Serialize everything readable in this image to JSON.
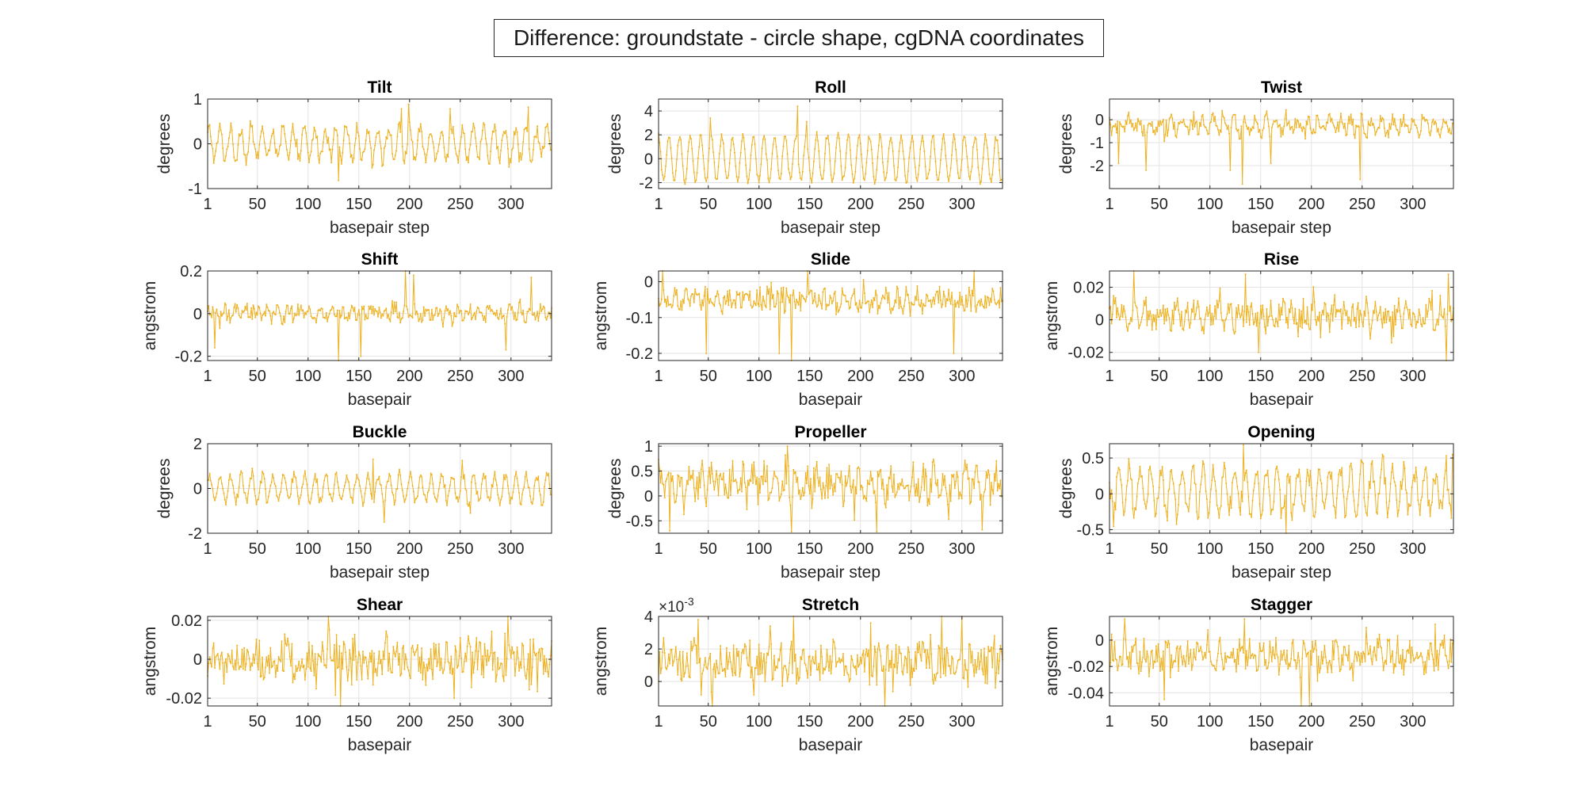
{
  "figure": {
    "title": "Difference: groundstate - circle shape, cgDNA coordinates",
    "line_color": "#EDB120"
  },
  "chart_data": [
    {
      "type": "line",
      "title": "Tilt",
      "xlabel": "basepair step",
      "ylabel": "degrees",
      "xlim": [
        1,
        340
      ],
      "ylim": [
        -1,
        1
      ],
      "xticks": [
        1,
        50,
        100,
        150,
        200,
        250,
        300
      ],
      "yticks": [
        -1,
        0,
        1
      ],
      "ytick_labels": [
        "-1",
        "0",
        "1"
      ],
      "n_points": 339,
      "x_start": 1,
      "series": [
        {
          "values_summary": "oscillating about 0, typical amplitude ±0.35",
          "amplitude": 0.35,
          "period": 10.4,
          "noise": 0.14,
          "offset": 0.0,
          "spikes": [
            {
              "x": 199,
              "y": 0.88
            },
            {
              "x": 192,
              "y": 0.78
            },
            {
              "x": 317,
              "y": 0.82
            },
            {
              "x": 240,
              "y": 0.78
            },
            {
              "x": 130,
              "y": -0.82
            }
          ]
        }
      ]
    },
    {
      "type": "line",
      "title": "Roll",
      "xlabel": "basepair step",
      "ylabel": "degrees",
      "xlim": [
        1,
        340
      ],
      "ylim": [
        -2.5,
        5
      ],
      "xticks": [
        1,
        50,
        100,
        150,
        200,
        250,
        300
      ],
      "yticks": [
        -2,
        0,
        2,
        4
      ],
      "ytick_labels": [
        "-2",
        "0",
        "2",
        "4"
      ],
      "n_points": 339,
      "x_start": 1,
      "series": [
        {
          "values_summary": "regular oscillation between about -2 and 2",
          "amplitude": 1.9,
          "period": 10.4,
          "noise": 0.25,
          "offset": 0.0,
          "spikes": [
            {
              "x": 138,
              "y": 4.4
            },
            {
              "x": 147,
              "y": 3.1
            },
            {
              "x": 52,
              "y": 3.4
            }
          ]
        }
      ]
    },
    {
      "type": "line",
      "title": "Twist",
      "xlabel": "basepair step",
      "ylabel": "degrees",
      "xlim": [
        1,
        340
      ],
      "ylim": [
        -3,
        0.9
      ],
      "xticks": [
        1,
        50,
        100,
        150,
        200,
        250,
        300
      ],
      "yticks": [
        -2,
        -1,
        0
      ],
      "ytick_labels": [
        "-2",
        "-1",
        "0"
      ],
      "n_points": 339,
      "x_start": 1,
      "series": [
        {
          "values_summary": "mostly between -0.8 and 0.3 with downward spikes",
          "amplitude": 0.3,
          "period": 10.4,
          "noise": 0.3,
          "offset": -0.25,
          "spikes": [
            {
              "x": 132,
              "y": -2.8
            },
            {
              "x": 120,
              "y": -2.2
            },
            {
              "x": 248,
              "y": -2.6
            },
            {
              "x": 10,
              "y": -1.9
            },
            {
              "x": 160,
              "y": -1.9
            },
            {
              "x": 37,
              "y": -2.2
            }
          ]
        }
      ]
    },
    {
      "type": "line",
      "title": "Shift",
      "xlabel": "basepair",
      "ylabel": "angstrom",
      "xlim": [
        1,
        340
      ],
      "ylim": [
        -0.22,
        0.2
      ],
      "xticks": [
        1,
        50,
        100,
        150,
        200,
        250,
        300
      ],
      "yticks": [
        -0.2,
        0,
        0.2
      ],
      "ytick_labels": [
        "-0.2",
        "0",
        "0.2"
      ],
      "n_points": 340,
      "x_start": 1,
      "series": [
        {
          "values_summary": "noise about 0, amplitude ±0.04",
          "amplitude": 0.02,
          "period": 10.4,
          "noise": 0.03,
          "offset": 0.0,
          "spikes": [
            {
              "x": 196,
              "y": 0.2
            },
            {
              "x": 204,
              "y": 0.18
            },
            {
              "x": 130,
              "y": -0.22
            },
            {
              "x": 152,
              "y": -0.2
            },
            {
              "x": 8,
              "y": -0.16
            },
            {
              "x": 320,
              "y": 0.17
            },
            {
              "x": 295,
              "y": -0.17
            }
          ]
        }
      ]
    },
    {
      "type": "line",
      "title": "Slide",
      "xlabel": "basepair",
      "ylabel": "angstrom",
      "xlim": [
        1,
        340
      ],
      "ylim": [
        -0.22,
        0.03
      ],
      "xticks": [
        1,
        50,
        100,
        150,
        200,
        250,
        300
      ],
      "yticks": [
        -0.2,
        -0.1,
        0
      ],
      "ytick_labels": [
        "-0.2",
        "-0.1",
        "0"
      ],
      "n_points": 340,
      "x_start": 1,
      "series": [
        {
          "values_summary": "mostly between -0.1 and 0 with downward spikes",
          "amplitude": 0.015,
          "period": 10.4,
          "noise": 0.025,
          "offset": -0.05,
          "spikes": [
            {
              "x": 132,
              "y": -0.22
            },
            {
              "x": 120,
              "y": -0.2
            },
            {
              "x": 48,
              "y": -0.2
            },
            {
              "x": 292,
              "y": -0.2
            },
            {
              "x": 5,
              "y": 0.03
            },
            {
              "x": 148,
              "y": 0.03
            },
            {
              "x": 312,
              "y": 0.03
            }
          ]
        }
      ]
    },
    {
      "type": "line",
      "title": "Rise",
      "xlabel": "basepair",
      "ylabel": "angstrom",
      "xlim": [
        1,
        340
      ],
      "ylim": [
        -0.025,
        0.03
      ],
      "xticks": [
        1,
        50,
        100,
        150,
        200,
        250,
        300
      ],
      "yticks": [
        -0.02,
        0,
        0.02
      ],
      "ytick_labels": [
        "-0.02",
        "0",
        "0.02"
      ],
      "n_points": 340,
      "x_start": 1,
      "series": [
        {
          "values_summary": "noise about 0.003, amplitude ±0.012",
          "amplitude": 0.004,
          "period": 10.4,
          "noise": 0.008,
          "offset": 0.003,
          "spikes": [
            {
              "x": 25,
              "y": 0.03
            },
            {
              "x": 135,
              "y": 0.028
            },
            {
              "x": 335,
              "y": 0.028
            },
            {
              "x": 333,
              "y": -0.025
            },
            {
              "x": 148,
              "y": -0.02
            }
          ]
        }
      ]
    },
    {
      "type": "line",
      "title": "Buckle",
      "xlabel": "basepair step",
      "ylabel": "degrees",
      "xlim": [
        1,
        340
      ],
      "ylim": [
        -2,
        2
      ],
      "xticks": [
        1,
        50,
        100,
        150,
        200,
        250,
        300
      ],
      "yticks": [
        -2,
        0,
        2
      ],
      "ytick_labels": [
        "-2",
        "0",
        "2"
      ],
      "n_points": 339,
      "x_start": 1,
      "series": [
        {
          "values_summary": "oscillation about 0, amplitude ±0.8",
          "amplitude": 0.6,
          "period": 10.4,
          "noise": 0.2,
          "offset": 0.0,
          "spikes": [
            {
              "x": 164,
              "y": 1.3
            },
            {
              "x": 252,
              "y": 1.25
            },
            {
              "x": 175,
              "y": -1.5
            },
            {
              "x": 260,
              "y": -1.1
            }
          ]
        }
      ]
    },
    {
      "type": "line",
      "title": "Propeller",
      "xlabel": "basepair step",
      "ylabel": "degrees",
      "xlim": [
        1,
        340
      ],
      "ylim": [
        -0.75,
        1.05
      ],
      "xticks": [
        1,
        50,
        100,
        150,
        200,
        250,
        300
      ],
      "yticks": [
        -0.5,
        0,
        0.5,
        1
      ],
      "ytick_labels": [
        "-0.5",
        "0",
        "0.5",
        "1"
      ],
      "n_points": 339,
      "x_start": 1,
      "series": [
        {
          "values_summary": "noise between -0.5 and 0.9",
          "amplitude": 0.2,
          "period": 10.4,
          "noise": 0.3,
          "offset": 0.25,
          "spikes": [
            {
              "x": 132,
              "y": -0.72
            },
            {
              "x": 216,
              "y": -0.72
            },
            {
              "x": 320,
              "y": -0.68
            },
            {
              "x": 12,
              "y": -0.7
            },
            {
              "x": 128,
              "y": 1.0
            }
          ]
        }
      ]
    },
    {
      "type": "line",
      "title": "Opening",
      "xlabel": "basepair step",
      "ylabel": "degrees",
      "xlim": [
        1,
        340
      ],
      "ylim": [
        -0.55,
        0.7
      ],
      "xticks": [
        1,
        50,
        100,
        150,
        200,
        250,
        300
      ],
      "yticks": [
        -0.5,
        0,
        0.5
      ],
      "ytick_labels": [
        "-0.5",
        "0",
        "0.5"
      ],
      "n_points": 339,
      "x_start": 1,
      "series": [
        {
          "values_summary": "oscillation about 0.05, amplitude ±0.4",
          "amplitude": 0.3,
          "period": 10.4,
          "noise": 0.12,
          "offset": 0.05,
          "spikes": [
            {
              "x": 133,
              "y": 0.68
            },
            {
              "x": 175,
              "y": -0.55
            },
            {
              "x": 339,
              "y": 0.55
            }
          ]
        }
      ]
    },
    {
      "type": "line",
      "title": "Shear",
      "xlabel": "basepair",
      "ylabel": "angstrom",
      "xlim": [
        1,
        340
      ],
      "ylim": [
        -0.024,
        0.022
      ],
      "xticks": [
        1,
        50,
        100,
        150,
        200,
        250,
        300
      ],
      "yticks": [
        -0.02,
        0,
        0.02
      ],
      "ytick_labels": [
        "-0.02",
        "0",
        "0.02"
      ],
      "n_points": 340,
      "x_start": 1,
      "series": [
        {
          "values_summary": "noise about 0, amplitude ±0.015",
          "amplitude": 0.003,
          "period": 10.4,
          "noise": 0.009,
          "offset": 0.0,
          "spikes": [
            {
              "x": 120,
              "y": 0.022
            },
            {
              "x": 297,
              "y": 0.022
            },
            {
              "x": 132,
              "y": -0.024
            },
            {
              "x": 244,
              "y": -0.02
            }
          ]
        }
      ]
    },
    {
      "type": "line",
      "title": "Stretch",
      "xlabel": "basepair",
      "ylabel": "angstrom",
      "xlim": [
        1,
        340
      ],
      "ylim": [
        -0.0015,
        0.004
      ],
      "xticks": [
        1,
        50,
        100,
        150,
        200,
        250,
        300
      ],
      "yticks": [
        0,
        0.002,
        0.004
      ],
      "ytick_labels": [
        "0",
        "2",
        "4"
      ],
      "exponent_label": "×10",
      "exponent_power": "-3",
      "n_points": 340,
      "x_start": 1,
      "series": [
        {
          "values_summary": "noise about 0.0012, amplitude ±0.0015",
          "amplitude": 0.0003,
          "period": 10.4,
          "noise": 0.0011,
          "offset": 0.0012,
          "spikes": [
            {
              "x": 40,
              "y": 0.0038
            },
            {
              "x": 134,
              "y": 0.004
            },
            {
              "x": 210,
              "y": 0.0036
            },
            {
              "x": 280,
              "y": 0.004
            },
            {
              "x": 300,
              "y": 0.004
            },
            {
              "x": 54,
              "y": -0.0015
            },
            {
              "x": 224,
              "y": -0.0015
            }
          ]
        }
      ]
    },
    {
      "type": "line",
      "title": "Stagger",
      "xlabel": "basepair",
      "ylabel": "angstrom",
      "xlim": [
        1,
        340
      ],
      "ylim": [
        -0.05,
        0.018
      ],
      "xticks": [
        1,
        50,
        100,
        150,
        200,
        250,
        300
      ],
      "yticks": [
        -0.04,
        -0.02,
        0
      ],
      "ytick_labels": [
        "-0.04",
        "-0.02",
        "0"
      ],
      "n_points": 340,
      "x_start": 1,
      "series": [
        {
          "values_summary": "noise between -0.03 and 0.01",
          "amplitude": 0.005,
          "period": 10.4,
          "noise": 0.01,
          "offset": -0.012,
          "spikes": [
            {
              "x": 16,
              "y": 0.016
            },
            {
              "x": 134,
              "y": 0.016
            },
            {
              "x": 190,
              "y": -0.05
            },
            {
              "x": 198,
              "y": -0.05
            },
            {
              "x": 55,
              "y": -0.045
            },
            {
              "x": 322,
              "y": 0.012
            }
          ]
        }
      ]
    }
  ]
}
